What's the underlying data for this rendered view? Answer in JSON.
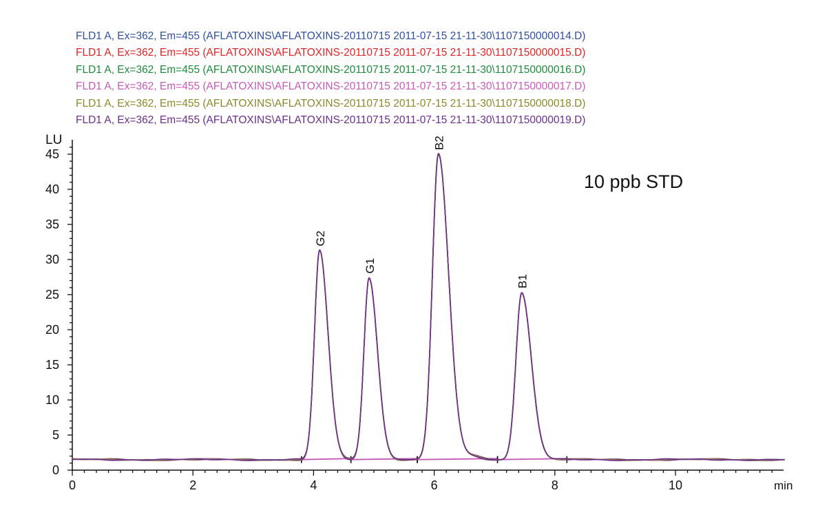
{
  "legend": [
    {
      "text": "FLD1 A, Ex=362, Em=455 (AFLATOXINS\\AFLATOXINS-20110715 2011-07-15 21-11-30\\1107150000014.D)",
      "color": "#2f4fa0"
    },
    {
      "text": "FLD1 A, Ex=362, Em=455 (AFLATOXINS\\AFLATOXINS-20110715 2011-07-15 21-11-30\\1107150000015.D)",
      "color": "#e02424"
    },
    {
      "text": "FLD1 A, Ex=362, Em=455 (AFLATOXINS\\AFLATOXINS-20110715 2011-07-15 21-11-30\\1107150000016.D)",
      "color": "#1e8a3c"
    },
    {
      "text": "FLD1 A, Ex=362, Em=455 (AFLATOXINS\\AFLATOXINS-20110715 2011-07-15 21-11-30\\1107150000017.D)",
      "color": "#c65ab8"
    },
    {
      "text": "FLD1 A, Ex=362, Em=455 (AFLATOXINS\\AFLATOXINS-20110715 2011-07-15 21-11-30\\1107150000018.D)",
      "color": "#8a8a2a"
    },
    {
      "text": "FLD1 A, Ex=362, Em=455 (AFLATOXINS\\AFLATOXINS-20110715 2011-07-15 21-11-30\\1107150000019.D)",
      "color": "#6b2f8a"
    }
  ],
  "chart_data": {
    "type": "line",
    "title": "",
    "xlabel": "min",
    "ylabel": "LU",
    "annotation": "10 ppb STD",
    "xlim": [
      0,
      12
    ],
    "ylim": [
      0,
      46
    ],
    "xticks": [
      0,
      2,
      4,
      6,
      8,
      10
    ],
    "yticks": [
      0,
      5,
      10,
      15,
      20,
      25,
      30,
      35,
      40,
      45
    ],
    "grid": false,
    "baseline": 1.5,
    "peaks": [
      {
        "label": "G2",
        "rt": 4.1,
        "height": 31.3
      },
      {
        "label": "G1",
        "rt": 4.92,
        "height": 27.4
      },
      {
        "label": "B2",
        "rt": 6.07,
        "height": 45.0
      },
      {
        "label": "B1",
        "rt": 7.45,
        "height": 25.3
      }
    ],
    "series": [
      {
        "name": "1107150000014.D",
        "color": "#2f4fa0"
      },
      {
        "name": "1107150000015.D",
        "color": "#e02424"
      },
      {
        "name": "1107150000016.D",
        "color": "#1e8a3c"
      },
      {
        "name": "1107150000017.D",
        "color": "#c65ab8"
      },
      {
        "name": "1107150000018.D",
        "color": "#8a8a2a"
      },
      {
        "name": "1107150000019.D",
        "color": "#6b2f8a"
      }
    ],
    "integration_baseline_color": "#c65ab8"
  }
}
